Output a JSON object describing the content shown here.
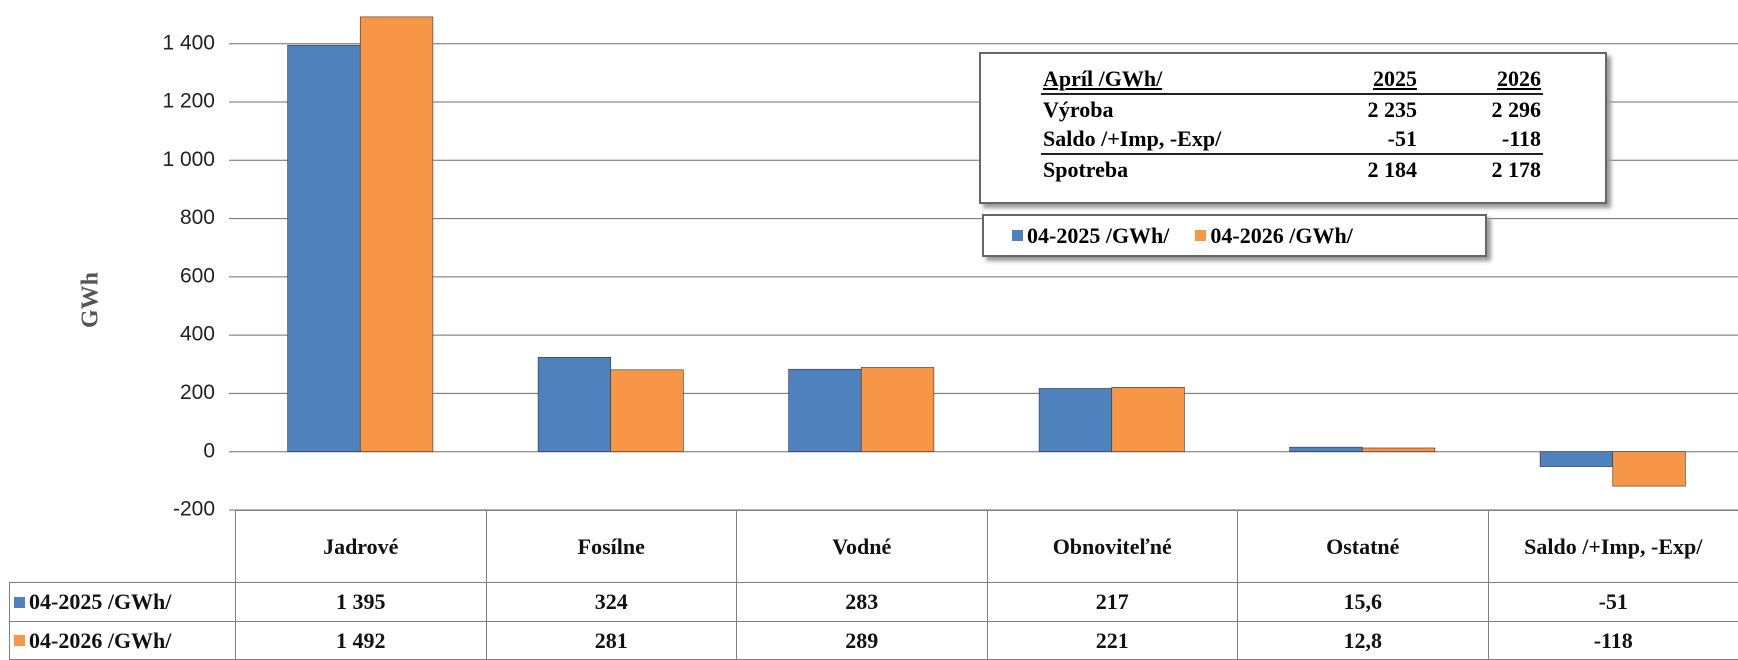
{
  "chart_data": {
    "type": "bar",
    "y_label": "GWh",
    "categories": [
      "Jadrové",
      "Fosílne",
      "Vodné",
      "Obnoviteľné",
      "Ostatné",
      "Saldo /+Imp, -Exp/"
    ],
    "series": [
      {
        "name": "04-2025 /GWh/",
        "color": "#4f81bd",
        "values": [
          1395,
          324,
          283,
          217,
          15.6,
          -51
        ],
        "value_labels": [
          "1 395",
          "324",
          "283",
          "217",
          "15,6",
          "-51"
        ]
      },
      {
        "name": "04-2026 /GWh/",
        "color": "#f79646",
        "values": [
          1492,
          281,
          289,
          221,
          12.8,
          -118
        ],
        "value_labels": [
          "1 492",
          "281",
          "289",
          "221",
          "12,8",
          "-118"
        ]
      }
    ],
    "ylim": [
      -200,
      1550
    ],
    "yticks": [
      -200,
      0,
      200,
      400,
      600,
      800,
      {
        "value": 1000,
        "label": "1 000"
      },
      {
        "value": 1200,
        "label": "1 200"
      },
      {
        "value": 1400,
        "label": "1 400"
      }
    ],
    "grid": true,
    "summary_table": {
      "columns": [
        "Apríl /GWh/",
        "2025",
        "2026"
      ],
      "rows": [
        [
          "Výroba",
          "2 235",
          "2 296"
        ],
        [
          "Saldo /+Imp, -Exp/",
          "-51",
          "-118"
        ],
        [
          "Spotreba",
          "2 184",
          "2 178"
        ]
      ]
    }
  }
}
